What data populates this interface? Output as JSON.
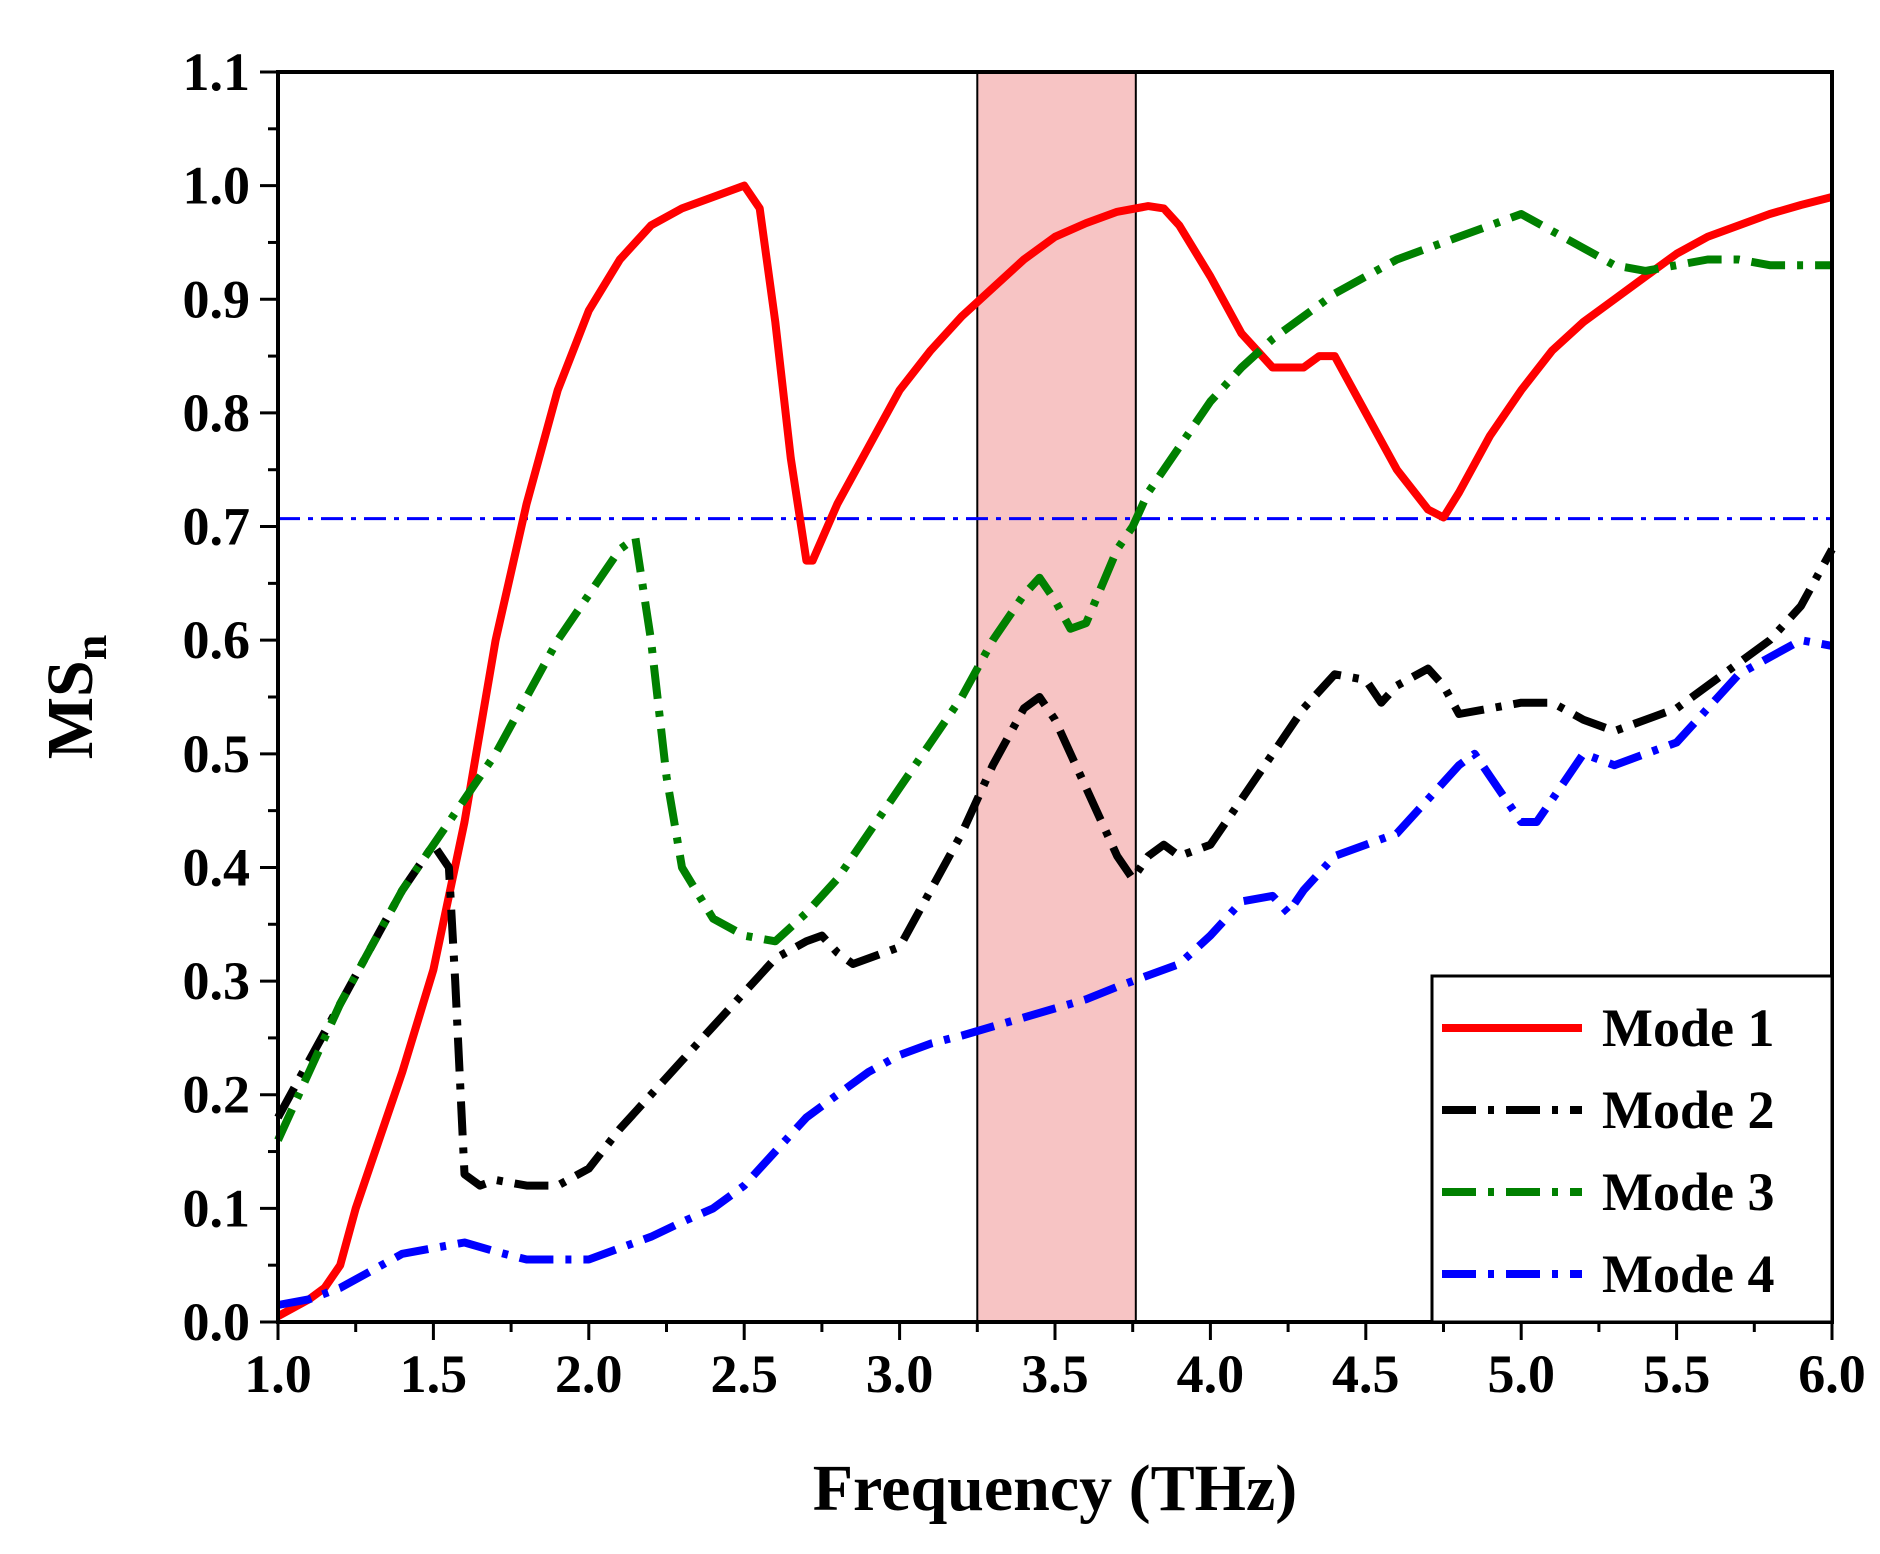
{
  "chart_data": {
    "type": "line",
    "title": "",
    "xlabel": "Frequency (THz)",
    "ylabel": "MS",
    "ylabel_subscript": "n",
    "xlim": [
      1.0,
      6.0
    ],
    "ylim": [
      0.0,
      1.1
    ],
    "xticks": [
      "1.0",
      "1.5",
      "2.0",
      "2.5",
      "3.0",
      "3.5",
      "4.0",
      "4.5",
      "5.0",
      "5.5",
      "6.0"
    ],
    "yticks": [
      "0.0",
      "0.1",
      "0.2",
      "0.3",
      "0.4",
      "0.5",
      "0.6",
      "0.7",
      "0.8",
      "0.9",
      "1.0",
      "1.1"
    ],
    "grid": false,
    "legend_position": "bottom-right",
    "highlight_band": {
      "x_start": 3.25,
      "x_end": 3.76,
      "color": "#f7c4c4"
    },
    "threshold": {
      "y": 0.707,
      "color": "#0000ff",
      "style": "dash-dot"
    },
    "series": [
      {
        "name": "Mode 1",
        "color": "#ff0000",
        "style": "solid",
        "x": [
          1.0,
          1.1,
          1.15,
          1.2,
          1.25,
          1.3,
          1.4,
          1.5,
          1.6,
          1.7,
          1.8,
          1.9,
          2.0,
          2.1,
          2.2,
          2.3,
          2.4,
          2.5,
          2.55,
          2.6,
          2.65,
          2.7,
          2.72,
          2.8,
          2.9,
          3.0,
          3.1,
          3.2,
          3.3,
          3.4,
          3.5,
          3.6,
          3.7,
          3.8,
          3.85,
          3.9,
          4.0,
          4.1,
          4.2,
          4.3,
          4.35,
          4.4,
          4.5,
          4.6,
          4.7,
          4.75,
          4.8,
          4.9,
          5.0,
          5.1,
          5.2,
          5.3,
          5.4,
          5.5,
          5.6,
          5.7,
          5.8,
          5.9,
          6.0
        ],
        "y": [
          0.005,
          0.02,
          0.03,
          0.05,
          0.1,
          0.14,
          0.22,
          0.31,
          0.44,
          0.6,
          0.72,
          0.82,
          0.89,
          0.935,
          0.965,
          0.98,
          0.99,
          1.0,
          0.98,
          0.88,
          0.76,
          0.67,
          0.67,
          0.72,
          0.77,
          0.82,
          0.855,
          0.885,
          0.91,
          0.935,
          0.955,
          0.967,
          0.977,
          0.982,
          0.98,
          0.965,
          0.92,
          0.87,
          0.84,
          0.84,
          0.85,
          0.85,
          0.8,
          0.75,
          0.715,
          0.708,
          0.73,
          0.78,
          0.82,
          0.855,
          0.88,
          0.9,
          0.92,
          0.94,
          0.955,
          0.965,
          0.975,
          0.983,
          0.99
        ]
      },
      {
        "name": "Mode 2",
        "color": "#000000",
        "style": "dash-dot",
        "x": [
          1.0,
          1.1,
          1.2,
          1.3,
          1.4,
          1.5,
          1.55,
          1.57,
          1.6,
          1.65,
          1.7,
          1.8,
          1.9,
          2.0,
          2.1,
          2.2,
          2.3,
          2.4,
          2.5,
          2.6,
          2.7,
          2.75,
          2.8,
          2.85,
          2.9,
          3.0,
          3.1,
          3.2,
          3.3,
          3.4,
          3.45,
          3.5,
          3.6,
          3.7,
          3.75,
          3.8,
          3.85,
          3.9,
          4.0,
          4.1,
          4.2,
          4.3,
          4.4,
          4.5,
          4.55,
          4.6,
          4.7,
          4.75,
          4.8,
          4.9,
          5.0,
          5.1,
          5.2,
          5.3,
          5.35,
          5.4,
          5.5,
          5.6,
          5.7,
          5.8,
          5.9,
          6.0
        ],
        "y": [
          0.18,
          0.23,
          0.28,
          0.33,
          0.38,
          0.42,
          0.4,
          0.3,
          0.13,
          0.12,
          0.125,
          0.12,
          0.12,
          0.135,
          0.17,
          0.2,
          0.23,
          0.26,
          0.29,
          0.32,
          0.335,
          0.34,
          0.325,
          0.315,
          0.32,
          0.33,
          0.38,
          0.43,
          0.49,
          0.54,
          0.55,
          0.53,
          0.47,
          0.41,
          0.39,
          0.41,
          0.42,
          0.41,
          0.42,
          0.46,
          0.5,
          0.54,
          0.57,
          0.565,
          0.545,
          0.56,
          0.575,
          0.56,
          0.535,
          0.54,
          0.545,
          0.545,
          0.53,
          0.52,
          0.525,
          0.53,
          0.54,
          0.56,
          0.58,
          0.6,
          0.63,
          0.68
        ]
      },
      {
        "name": "Mode 3",
        "color": "#008000",
        "style": "dash-dot",
        "x": [
          1.0,
          1.1,
          1.2,
          1.3,
          1.4,
          1.5,
          1.6,
          1.7,
          1.8,
          1.9,
          2.0,
          2.1,
          2.15,
          2.2,
          2.25,
          2.3,
          2.4,
          2.5,
          2.6,
          2.7,
          2.8,
          2.9,
          3.0,
          3.1,
          3.2,
          3.3,
          3.4,
          3.45,
          3.5,
          3.55,
          3.6,
          3.7,
          3.75,
          3.8,
          3.9,
          4.0,
          4.1,
          4.2,
          4.3,
          4.4,
          4.5,
          4.6,
          4.7,
          4.8,
          4.9,
          5.0,
          5.1,
          5.2,
          5.3,
          5.4,
          5.5,
          5.6,
          5.7,
          5.8,
          5.9,
          6.0
        ],
        "y": [
          0.16,
          0.22,
          0.28,
          0.33,
          0.38,
          0.42,
          0.46,
          0.5,
          0.55,
          0.6,
          0.64,
          0.68,
          0.69,
          0.6,
          0.48,
          0.4,
          0.355,
          0.34,
          0.335,
          0.36,
          0.39,
          0.43,
          0.47,
          0.51,
          0.55,
          0.6,
          0.64,
          0.655,
          0.635,
          0.61,
          0.615,
          0.68,
          0.7,
          0.73,
          0.77,
          0.81,
          0.84,
          0.865,
          0.885,
          0.905,
          0.92,
          0.935,
          0.945,
          0.955,
          0.965,
          0.975,
          0.96,
          0.945,
          0.93,
          0.925,
          0.93,
          0.935,
          0.935,
          0.93,
          0.93,
          0.93
        ]
      },
      {
        "name": "Mode 4",
        "color": "#0000ff",
        "style": "dash-dot",
        "x": [
          1.0,
          1.1,
          1.2,
          1.3,
          1.4,
          1.5,
          1.6,
          1.7,
          1.8,
          1.9,
          2.0,
          2.1,
          2.2,
          2.3,
          2.4,
          2.5,
          2.6,
          2.7,
          2.8,
          2.9,
          3.0,
          3.1,
          3.2,
          3.3,
          3.4,
          3.5,
          3.6,
          3.7,
          3.8,
          3.9,
          4.0,
          4.1,
          4.2,
          4.25,
          4.3,
          4.4,
          4.5,
          4.6,
          4.7,
          4.8,
          4.85,
          4.9,
          5.0,
          5.05,
          5.1,
          5.2,
          5.3,
          5.4,
          5.5,
          5.6,
          5.7,
          5.8,
          5.9,
          6.0
        ],
        "y": [
          0.015,
          0.02,
          0.03,
          0.045,
          0.06,
          0.065,
          0.07,
          0.062,
          0.055,
          0.055,
          0.055,
          0.065,
          0.075,
          0.088,
          0.1,
          0.12,
          0.15,
          0.18,
          0.2,
          0.22,
          0.235,
          0.245,
          0.252,
          0.26,
          0.268,
          0.276,
          0.284,
          0.295,
          0.305,
          0.315,
          0.34,
          0.37,
          0.375,
          0.36,
          0.38,
          0.41,
          0.42,
          0.43,
          0.46,
          0.49,
          0.5,
          0.48,
          0.44,
          0.44,
          0.46,
          0.5,
          0.49,
          0.5,
          0.51,
          0.54,
          0.57,
          0.585,
          0.6,
          0.595
        ]
      }
    ]
  }
}
